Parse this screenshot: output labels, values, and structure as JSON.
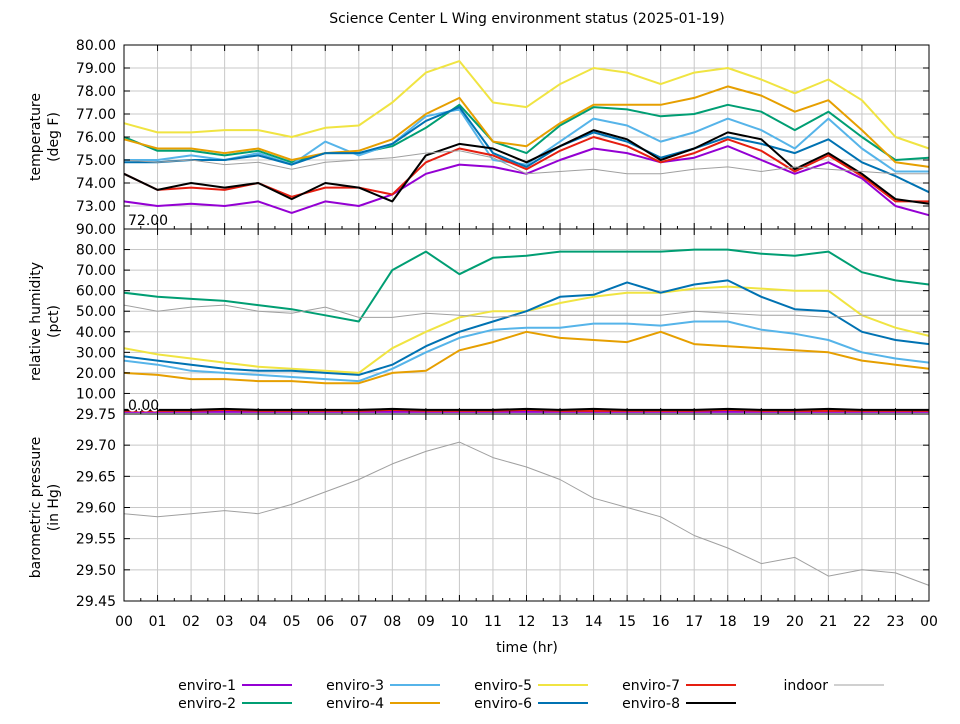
{
  "chart_data": {
    "title": "Science Center L Wing environment status (2025-01-19)",
    "xlabel": "time (hr)",
    "x_ticks": [
      "00",
      "01",
      "02",
      "03",
      "04",
      "05",
      "06",
      "07",
      "08",
      "09",
      "10",
      "11",
      "12",
      "13",
      "14",
      "15",
      "16",
      "17",
      "18",
      "19",
      "20",
      "21",
      "22",
      "23",
      "00"
    ],
    "xlim": [
      0,
      24
    ],
    "grid": true,
    "legend_position": "bottom",
    "hours": [
      0,
      1,
      2,
      3,
      4,
      5,
      6,
      7,
      8,
      9,
      10,
      11,
      12,
      13,
      14,
      15,
      16,
      17,
      18,
      19,
      20,
      21,
      22,
      23,
      24
    ],
    "series_styles": [
      {
        "name": "enviro-1",
        "color": "#9400d3"
      },
      {
        "name": "enviro-2",
        "color": "#009e73"
      },
      {
        "name": "enviro-3",
        "color": "#56b4e9"
      },
      {
        "name": "enviro-4",
        "color": "#e69f00"
      },
      {
        "name": "enviro-5",
        "color": "#f0e442"
      },
      {
        "name": "enviro-6",
        "color": "#0072b2"
      },
      {
        "name": "enviro-7",
        "color": "#e51e10"
      },
      {
        "name": "enviro-8",
        "color": "#000000"
      },
      {
        "name": "indoor",
        "color": "#a0a0a0"
      }
    ],
    "panels": [
      {
        "type": "line",
        "ylabel": [
          "temperature",
          "(deg F)"
        ],
        "ylim": [
          72,
          80
        ],
        "y_ticks": [
          "73.00",
          "74.00",
          "75.00",
          "76.00",
          "77.00",
          "78.00",
          "79.00",
          "80.00"
        ],
        "y_tick_values": [
          73,
          74,
          75,
          76,
          77,
          78,
          79,
          80
        ],
        "y_bottom_label": "72.00",
        "series": [
          {
            "name": "enviro-1",
            "values": [
              73.2,
              73.0,
              73.1,
              73.0,
              73.2,
              72.7,
              73.2,
              73.0,
              73.5,
              74.4,
              74.8,
              74.7,
              74.4,
              75.0,
              75.5,
              75.3,
              74.9,
              75.1,
              75.6,
              75.0,
              74.4,
              74.9,
              74.2,
              73.0,
              72.6
            ]
          },
          {
            "name": "enviro-2",
            "values": [
              76.0,
              75.4,
              75.4,
              75.2,
              75.4,
              74.9,
              75.3,
              75.3,
              75.6,
              76.4,
              77.4,
              75.8,
              75.3,
              76.5,
              77.3,
              77.2,
              76.9,
              77.0,
              77.4,
              77.1,
              76.3,
              77.1,
              76.0,
              75.0,
              75.1
            ]
          },
          {
            "name": "enviro-3",
            "values": [
              75.0,
              75.0,
              75.2,
              75.0,
              75.3,
              74.8,
              75.8,
              75.2,
              75.7,
              76.9,
              77.2,
              75.0,
              74.8,
              75.8,
              76.8,
              76.5,
              75.8,
              76.2,
              76.8,
              76.3,
              75.5,
              76.8,
              75.5,
              74.5,
              74.5
            ]
          },
          {
            "name": "enviro-4",
            "values": [
              75.9,
              75.5,
              75.5,
              75.3,
              75.5,
              75.0,
              75.3,
              75.4,
              75.9,
              77.0,
              77.7,
              75.8,
              75.6,
              76.6,
              77.4,
              77.4,
              77.4,
              77.7,
              78.2,
              77.8,
              77.1,
              77.6,
              76.3,
              74.9,
              74.7
            ]
          },
          {
            "name": "enviro-5",
            "values": [
              76.6,
              76.2,
              76.2,
              76.3,
              76.3,
              76.0,
              76.4,
              76.5,
              77.5,
              78.8,
              79.3,
              77.5,
              77.3,
              78.3,
              79.0,
              78.8,
              78.3,
              78.8,
              79.0,
              78.5,
              77.9,
              78.5,
              77.6,
              76.0,
              75.5
            ]
          },
          {
            "name": "enviro-6",
            "values": [
              74.9,
              74.9,
              75.0,
              75.0,
              75.2,
              74.8,
              75.3,
              75.3,
              75.7,
              76.7,
              77.3,
              75.3,
              74.7,
              75.6,
              76.2,
              75.8,
              75.1,
              75.5,
              76.0,
              75.7,
              75.3,
              75.9,
              74.9,
              74.3,
              73.6
            ]
          },
          {
            "name": "enviro-7",
            "values": [
              74.4,
              73.7,
              73.8,
              73.7,
              74.0,
              73.4,
              73.8,
              73.8,
              73.5,
              74.9,
              75.5,
              75.2,
              74.6,
              75.4,
              76.0,
              75.6,
              74.9,
              75.3,
              75.9,
              75.4,
              74.5,
              75.2,
              74.3,
              73.2,
              73.2
            ]
          },
          {
            "name": "enviro-8",
            "values": [
              74.4,
              73.7,
              74.0,
              73.8,
              74.0,
              73.3,
              74.0,
              73.8,
              73.2,
              75.2,
              75.7,
              75.5,
              74.9,
              75.6,
              76.3,
              75.9,
              75.0,
              75.5,
              76.2,
              75.9,
              74.6,
              75.3,
              74.4,
              73.3,
              73.1
            ]
          },
          {
            "name": "indoor",
            "values": [
              75.0,
              74.9,
              75.0,
              74.8,
              74.9,
              74.6,
              74.9,
              75.0,
              75.1,
              75.3,
              75.4,
              75.1,
              74.4,
              74.5,
              74.6,
              74.4,
              74.4,
              74.6,
              74.7,
              74.5,
              74.7,
              74.6,
              74.5,
              74.4,
              74.4
            ]
          }
        ]
      },
      {
        "type": "line",
        "ylabel": [
          "relative humidity",
          "(pct)"
        ],
        "ylim": [
          0,
          90
        ],
        "y_ticks": [
          "10.00",
          "20.00",
          "30.00",
          "40.00",
          "50.00",
          "60.00",
          "70.00",
          "80.00",
          "90.00"
        ],
        "y_tick_values": [
          10,
          20,
          30,
          40,
          50,
          60,
          70,
          80,
          90
        ],
        "y_bottom_label": "0.00",
        "series": [
          {
            "name": "enviro-1",
            "values": [
              1,
              1,
              1,
              1,
              1,
              1,
              1,
              1,
              1,
              1,
              1,
              1,
              1,
              1,
              1,
              1,
              1,
              1,
              1,
              1,
              1,
              1,
              1,
              1,
              1
            ]
          },
          {
            "name": "enviro-2",
            "values": [
              59,
              57,
              56,
              55,
              53,
              51,
              48,
              45,
              70,
              79,
              68,
              76,
              77,
              79,
              79,
              79,
              79,
              80,
              80,
              78,
              77,
              79,
              69,
              65,
              63
            ]
          },
          {
            "name": "enviro-3",
            "values": [
              26,
              24,
              21,
              20,
              19,
              18,
              17,
              16,
              22,
              30,
              37,
              41,
              42,
              42,
              44,
              44,
              43,
              45,
              45,
              41,
              39,
              36,
              30,
              27,
              25
            ]
          },
          {
            "name": "enviro-4",
            "values": [
              20,
              19,
              17,
              17,
              16,
              16,
              15,
              15,
              20,
              21,
              31,
              35,
              40,
              37,
              36,
              35,
              40,
              34,
              33,
              32,
              31,
              30,
              26,
              24,
              22
            ]
          },
          {
            "name": "enviro-5",
            "values": [
              32,
              29,
              27,
              25,
              23,
              22,
              21,
              20,
              32,
              40,
              47,
              50,
              50,
              54,
              57,
              59,
              59,
              61,
              62,
              61,
              60,
              60,
              48,
              42,
              38
            ]
          },
          {
            "name": "enviro-6",
            "values": [
              28,
              26,
              24,
              22,
              21,
              21,
              20,
              19,
              24,
              33,
              40,
              45,
              50,
              57,
              58,
              64,
              59,
              63,
              65,
              57,
              51,
              50,
              40,
              36,
              34
            ]
          },
          {
            "name": "enviro-7",
            "values": [
              1.5,
              1.5,
              1.5,
              2,
              1.5,
              1.5,
              1.5,
              1.5,
              2,
              1.5,
              1.5,
              1.5,
              2,
              1.5,
              1.5,
              1.5,
              1.5,
              1.5,
              2,
              1.5,
              1.5,
              1.5,
              1.5,
              1.5,
              1.5
            ]
          },
          {
            "name": "enviro-8",
            "values": [
              2,
              2,
              2,
              2.5,
              2,
              2,
              2,
              2,
              2.5,
              2,
              2,
              2,
              2.5,
              2,
              2.5,
              2,
              2,
              2,
              2.5,
              2,
              2,
              2.5,
              2,
              2,
              2
            ]
          },
          {
            "name": "indoor",
            "values": [
              53,
              50,
              52,
              53,
              50,
              49,
              52,
              47,
              47,
              49,
              48,
              47,
              48,
              48,
              48,
              48,
              48,
              50,
              49,
              48,
              48,
              47,
              48,
              48,
              48
            ]
          }
        ]
      },
      {
        "type": "line",
        "ylabel": [
          "barometric pressure",
          "(in Hg)"
        ],
        "ylim": [
          29.45,
          29.75
        ],
        "y_ticks": [
          "29.45",
          "29.50",
          "29.55",
          "29.60",
          "29.65",
          "29.70",
          "29.75"
        ],
        "y_tick_values": [
          29.45,
          29.5,
          29.55,
          29.6,
          29.65,
          29.7,
          29.75
        ],
        "series": [
          {
            "name": "indoor",
            "values": [
              29.59,
              29.585,
              29.59,
              29.595,
              29.59,
              29.605,
              29.625,
              29.645,
              29.67,
              29.69,
              29.705,
              29.68,
              29.665,
              29.645,
              29.615,
              29.6,
              29.585,
              29.555,
              29.535,
              29.51,
              29.52,
              29.49,
              29.5,
              29.495,
              29.475
            ]
          }
        ]
      }
    ]
  }
}
